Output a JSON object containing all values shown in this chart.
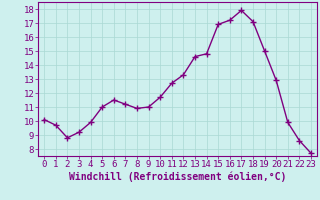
{
  "x": [
    0,
    1,
    2,
    3,
    4,
    5,
    6,
    7,
    8,
    9,
    10,
    11,
    12,
    13,
    14,
    15,
    16,
    17,
    18,
    19,
    20,
    21,
    22,
    23
  ],
  "y": [
    10.1,
    9.7,
    8.8,
    9.2,
    9.9,
    11.0,
    11.5,
    11.2,
    10.9,
    11.0,
    11.7,
    12.7,
    13.3,
    14.6,
    14.8,
    16.9,
    17.2,
    17.9,
    17.1,
    15.0,
    12.9,
    9.9,
    8.6,
    7.7
  ],
  "line_color": "#800080",
  "marker": "+",
  "marker_size": 4,
  "xlabel": "Windchill (Refroidissement éolien,°C)",
  "ylabel_ticks": [
    8,
    9,
    10,
    11,
    12,
    13,
    14,
    15,
    16,
    17,
    18
  ],
  "ylim": [
    7.5,
    18.5
  ],
  "xlim": [
    -0.5,
    23.5
  ],
  "bg_color": "#cef0ee",
  "grid_color": "#aad8d4",
  "tick_color": "#800080",
  "label_color": "#800080",
  "xlabel_fontsize": 7,
  "tick_fontsize": 6.5,
  "line_width": 1.0,
  "marker_edge_width": 1.0
}
